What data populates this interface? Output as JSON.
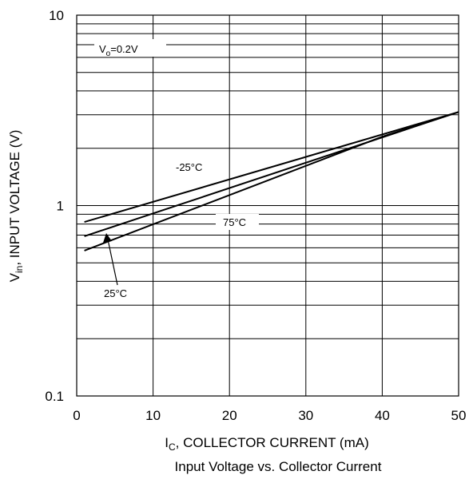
{
  "chart_data": {
    "type": "line",
    "title": "Input Voltage vs. Collector Current",
    "xlabel_main": "C",
    "xlabel": "I",
    "xlabel_rest": ", COLLECTOR CURRENT (mA)",
    "ylabel": "V",
    "ylabel_sub": "in",
    "ylabel_rest": ", INPUT VOLTAGE (V)",
    "xlim": [
      0,
      50
    ],
    "ylim": [
      0.1,
      10
    ],
    "yscale": "log",
    "grid": true,
    "x_ticks": [
      "0",
      "10",
      "20",
      "30",
      "40",
      "50"
    ],
    "y_ticks": [
      "0.1",
      "1",
      "10"
    ],
    "condition": {
      "main": "V",
      "sub": "o",
      "rest": "=0.2V"
    },
    "series": [
      {
        "name": "-25°C",
        "x": [
          1,
          50
        ],
        "y": [
          0.82,
          3.1
        ]
      },
      {
        "name": "25°C",
        "x": [
          1,
          40,
          50
        ],
        "y": [
          0.58,
          2.3,
          3.1
        ]
      },
      {
        "name": "75°C",
        "x": [
          1,
          50
        ],
        "y": [
          0.69,
          3.1
        ]
      }
    ],
    "annotations": {
      "m25": "-25°C",
      "t75": "75°C",
      "t25": "25°C"
    }
  }
}
